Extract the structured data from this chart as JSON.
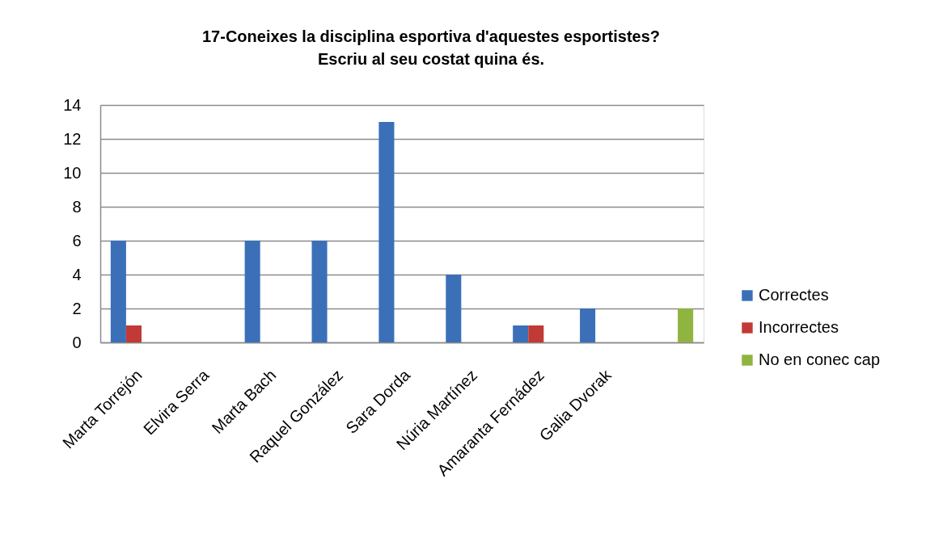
{
  "chart_data": {
    "type": "bar",
    "title": "17-Coneixes la disciplina esportiva d'aquestes esportistes?\nEscriu al seu costat quina és.",
    "categories": [
      "Marta Torrejón",
      "Elvira Serra",
      "Marta Bach",
      "Raquel González",
      "Sara Dorda",
      "Núria Martínez",
      "Amaranta Fernádez",
      "Galia Dvorak",
      null
    ],
    "series": [
      {
        "name": "Correctes",
        "color": "#3b70b8",
        "values": [
          6,
          0,
          6,
          6,
          13,
          4,
          1,
          2,
          0
        ]
      },
      {
        "name": "Incorrectes",
        "color": "#c23a35",
        "values": [
          1,
          0,
          0,
          0,
          0,
          0,
          1,
          0,
          0
        ]
      },
      {
        "name": "No en conec cap",
        "color": "#8fb440",
        "values": [
          0,
          0,
          0,
          0,
          0,
          0,
          0,
          0,
          2
        ]
      }
    ],
    "ylim": [
      0,
      14
    ],
    "yticks": [
      0,
      2,
      4,
      6,
      8,
      10,
      12,
      14
    ],
    "grid": "y",
    "legend": "right"
  }
}
